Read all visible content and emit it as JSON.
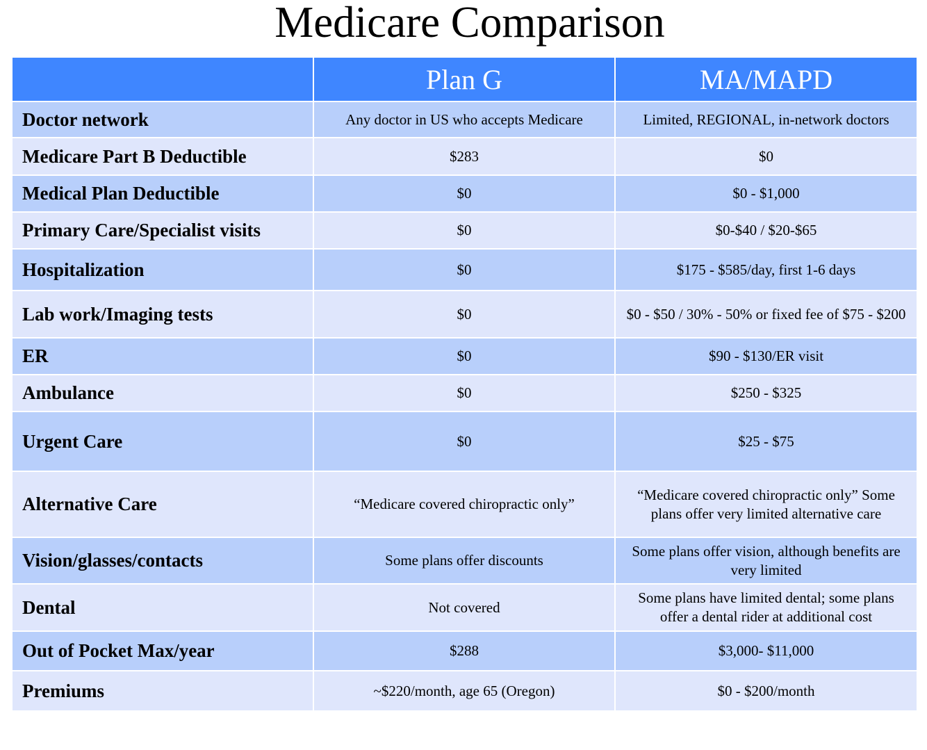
{
  "title": "Medicare Comparison",
  "colors": {
    "header": "#3f86ff",
    "row_dark": "#b8cffb",
    "row_light": "#dfe6fc"
  },
  "columns": [
    "",
    "Plan G",
    "MA/MAPD"
  ],
  "rows": [
    {
      "label": "Doctor network",
      "plan_g": "Any doctor in US who accepts Medicare",
      "ma_mapd": "Limited, REGIONAL, in-network doctors"
    },
    {
      "label": "Medicare Part B Deductible",
      "plan_g": "$283",
      "ma_mapd": "$0"
    },
    {
      "label": "Medical Plan Deductible",
      "plan_g": "$0",
      "ma_mapd": "$0 - $1,000"
    },
    {
      "label": "Primary Care/Specialist visits",
      "plan_g": "$0",
      "ma_mapd": "$0-$40 / $20-$65"
    },
    {
      "label": "Hospitalization",
      "plan_g": "$0",
      "ma_mapd": "$175 - $585/day, first 1-6 days"
    },
    {
      "label": "Lab work/Imaging tests",
      "plan_g": "$0",
      "ma_mapd": "$0 - $50  /  30% - 50% or fixed fee of $75 - $200"
    },
    {
      "label": "ER",
      "plan_g": "$0",
      "ma_mapd": "$90 - $130/ER visit"
    },
    {
      "label": "Ambulance",
      "plan_g": "$0",
      "ma_mapd": "$250 - $325"
    },
    {
      "label": "Urgent Care",
      "plan_g": "$0",
      "ma_mapd": "$25 - $75"
    },
    {
      "label": "Alternative Care",
      "plan_g": "“Medicare covered chiropractic only”",
      "ma_mapd": "“Medicare covered chiropractic only” Some plans offer very limited alternative care"
    },
    {
      "label": "Vision/glasses/contacts",
      "plan_g": "Some plans offer discounts",
      "ma_mapd": "Some plans offer vision, although benefits are very  limited"
    },
    {
      "label": "Dental",
      "plan_g": "Not covered",
      "ma_mapd": "Some plans have limited dental; some plans offer a dental rider at additional cost"
    },
    {
      "label": "Out of Pocket Max/year",
      "plan_g": "$288",
      "ma_mapd": "$3,000- $11,000"
    },
    {
      "label": "Premiums",
      "plan_g": "~$220/month, age 65  (Oregon)",
      "ma_mapd": "$0 - $200/month"
    }
  ]
}
